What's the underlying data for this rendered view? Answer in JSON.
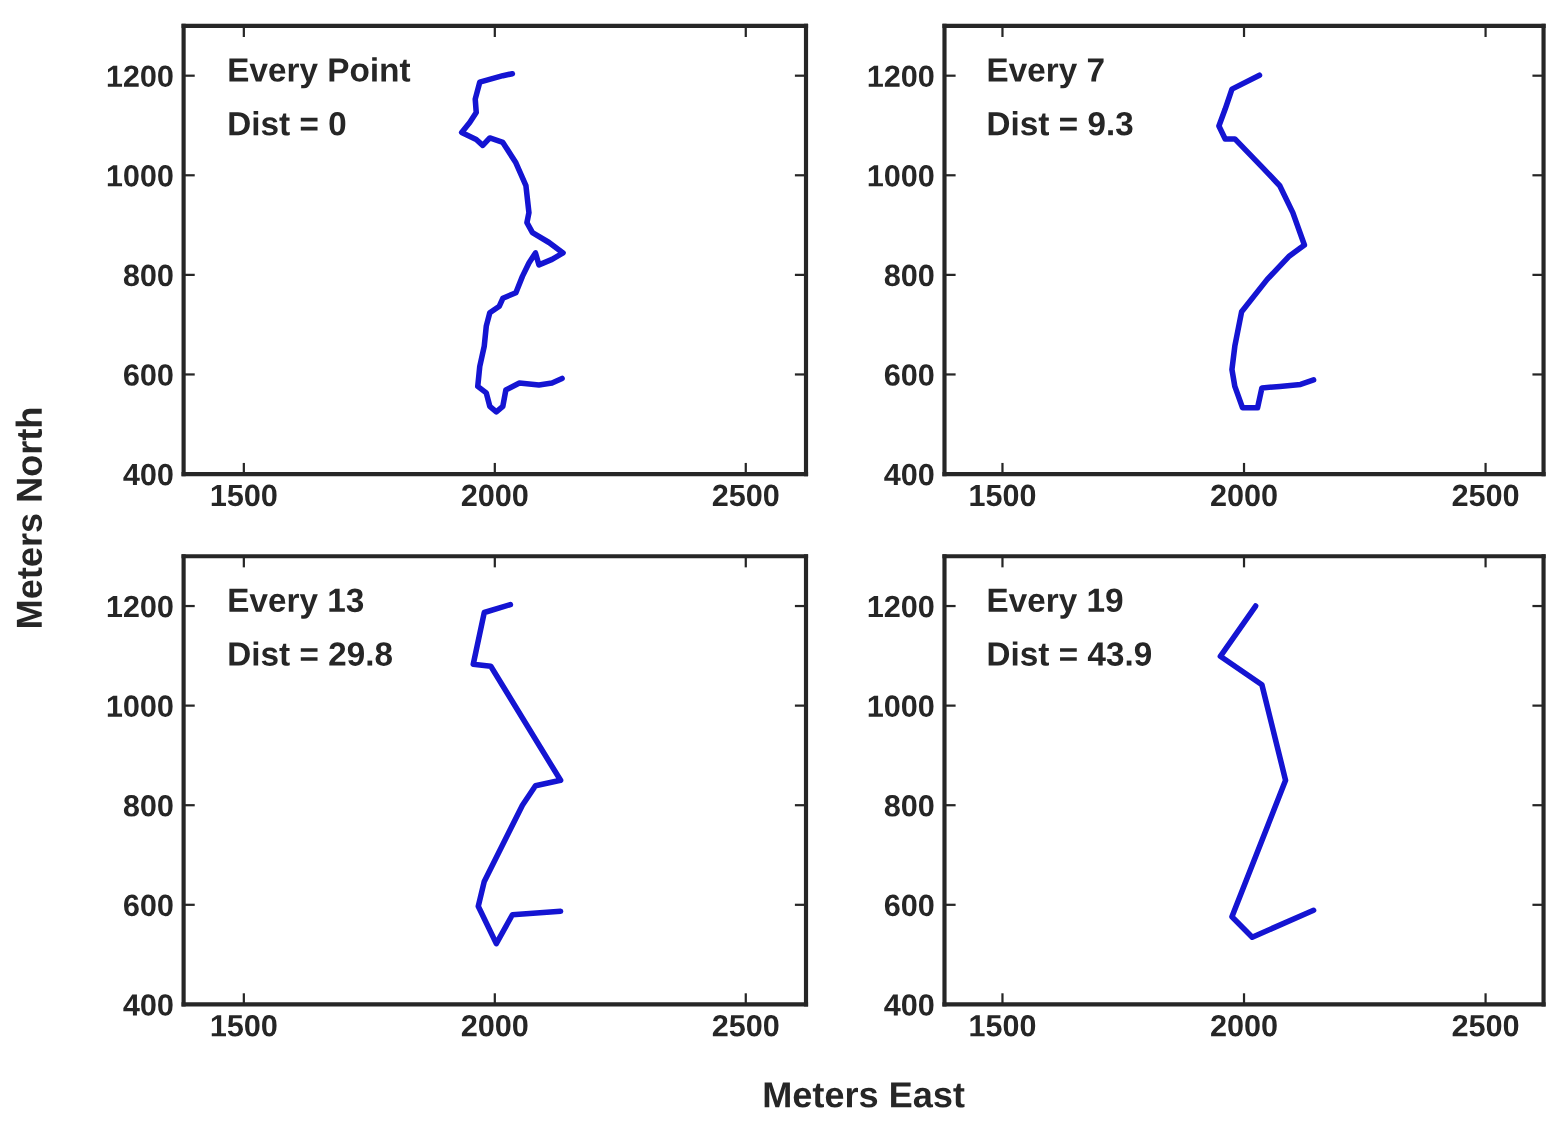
{
  "chart_data": [
    {
      "type": "line",
      "ylabel": "Meters North",
      "annotations": [
        "Every Point",
        "Dist = 0"
      ],
      "xlim": [
        1380,
        2620
      ],
      "ylim": [
        400,
        1300
      ],
      "xticks": [
        1500,
        2000,
        2500
      ],
      "yticks": [
        400,
        600,
        800,
        1000,
        1200
      ],
      "grid": false,
      "legend": false,
      "series": [
        {
          "color": "#1414d2",
          "x": [
            2035,
            2016,
            1970,
            1961,
            1963,
            1950,
            1934,
            1963,
            1976,
            1990,
            2016,
            2042,
            2062,
            2068,
            2064,
            2075,
            2108,
            2136,
            2114,
            2088,
            2081,
            2068,
            2055,
            2042,
            2016,
            2009,
            1990,
            1983,
            1979,
            1970,
            1966,
            1983,
            1990,
            2003,
            2016,
            2022,
            2049,
            2088,
            2114,
            2134
          ],
          "values": [
            1204,
            1200,
            1187,
            1153,
            1126,
            1106,
            1086,
            1072,
            1060,
            1075,
            1066,
            1025,
            979,
            925,
            905,
            885,
            865,
            844,
            831,
            820,
            844,
            824,
            797,
            764,
            753,
            737,
            724,
            697,
            657,
            616,
            576,
            563,
            536,
            525,
            536,
            569,
            583,
            579,
            583,
            592
          ]
        }
      ]
    },
    {
      "type": "line",
      "annotations": [
        "Every 7",
        "Dist = 9.3"
      ],
      "xlim": [
        1380,
        2620
      ],
      "ylim": [
        400,
        1300
      ],
      "xticks": [
        1500,
        2000,
        2500
      ],
      "yticks": [
        400,
        600,
        800,
        1000,
        1200
      ],
      "grid": false,
      "legend": false,
      "series": [
        {
          "color": "#1414d2",
          "x": [
            2032,
            1975,
            1961,
            1948,
            1961,
            1981,
            2035,
            2074,
            2101,
            2125,
            2094,
            2048,
            1995,
            1981,
            1975,
            1981,
            1997,
            2028,
            2037,
            2074,
            2117,
            2144
          ],
          "values": [
            1201,
            1173,
            1133,
            1099,
            1073,
            1073,
            1019,
            979,
            925,
            860,
            838,
            791,
            726,
            657,
            610,
            576,
            533,
            533,
            573,
            576,
            580,
            589
          ]
        }
      ]
    },
    {
      "type": "line",
      "xlabel": "Meters East",
      "annotations": [
        "Every 13",
        "Dist = 29.8"
      ],
      "xlim": [
        1380,
        2620
      ],
      "ylim": [
        400,
        1300
      ],
      "xticks": [
        1500,
        2000,
        2500
      ],
      "yticks": [
        400,
        600,
        800,
        1000,
        1200
      ],
      "grid": false,
      "legend": false,
      "series": [
        {
          "color": "#1414d2",
          "x": [
            2031,
            1979,
            1957,
            1992,
            2131,
            2081,
            2055,
            1979,
            1967,
            2003,
            2035,
            2131
          ],
          "values": [
            1203,
            1187,
            1083,
            1079,
            850,
            839,
            800,
            647,
            597,
            522,
            580,
            587
          ]
        }
      ]
    },
    {
      "type": "line",
      "annotations": [
        "Every 19",
        "Dist = 43.9"
      ],
      "xlim": [
        1380,
        2620
      ],
      "ylim": [
        400,
        1300
      ],
      "xticks": [
        1500,
        2000,
        2500
      ],
      "yticks": [
        400,
        600,
        800,
        1000,
        1200
      ],
      "grid": false,
      "legend": false,
      "series": [
        {
          "color": "#1414d2",
          "x": [
            2024,
            1951,
            2037,
            2086,
            1975,
            2017,
            2144
          ],
          "values": [
            1200,
            1099,
            1042,
            850,
            576,
            535,
            589
          ]
        }
      ]
    }
  ]
}
